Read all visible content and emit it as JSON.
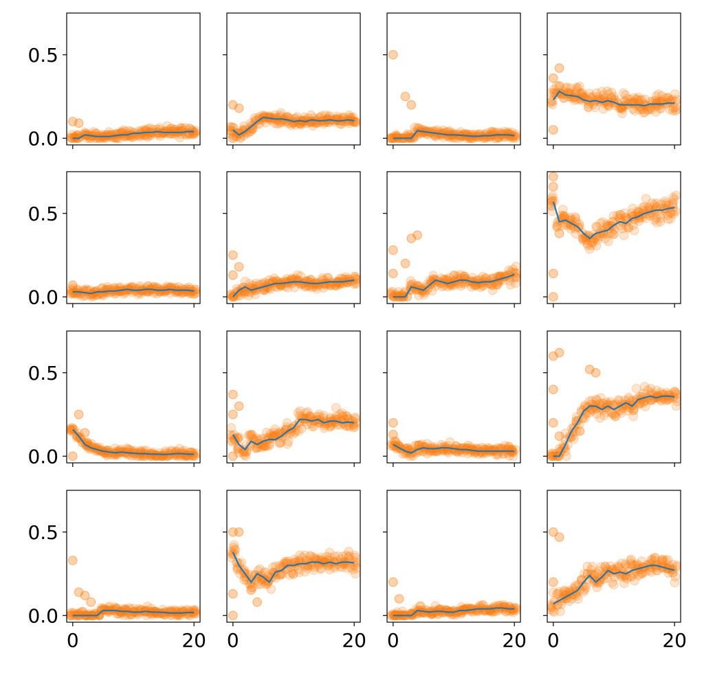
{
  "chart_data": {
    "type": "scatter",
    "layout": "4x4 small-multiples grid, shared x and y axes",
    "xlim": [
      -1,
      21
    ],
    "ylim": [
      -0.04,
      0.75
    ],
    "xticks": [
      0,
      20
    ],
    "xtick_labels": [
      "0",
      "20"
    ],
    "yticks": [
      0.0,
      0.5
    ],
    "ytick_labels": [
      "0.0",
      "0.5"
    ],
    "grid": false,
    "legend": "none",
    "colors": {
      "scatter": "#ff7f0e",
      "line": "#1f77b4"
    },
    "x": [
      0,
      1,
      2,
      3,
      4,
      5,
      6,
      7,
      8,
      9,
      10,
      11,
      12,
      13,
      14,
      15,
      16,
      17,
      18,
      19,
      20
    ],
    "panels": [
      {
        "row": 0,
        "col": 0,
        "mean": [
          0.0,
          0.0,
          0.02,
          0.015,
          0.01,
          0.01,
          0.01,
          0.015,
          0.02,
          0.02,
          0.03,
          0.03,
          0.035,
          0.035,
          0.04,
          0.035,
          0.035,
          0.035,
          0.035,
          0.04,
          0.04
        ],
        "spread": 0.035,
        "outliers": [
          [
            0,
            0.1
          ],
          [
            1,
            0.09
          ]
        ]
      },
      {
        "row": 0,
        "col": 1,
        "mean": [
          0.05,
          0.02,
          0.04,
          0.07,
          0.1,
          0.125,
          0.12,
          0.115,
          0.115,
          0.11,
          0.1,
          0.105,
          0.1,
          0.11,
          0.105,
          0.105,
          0.11,
          0.105,
          0.105,
          0.11,
          0.105
        ],
        "spread": 0.035,
        "outliers": [
          [
            0,
            0.2
          ],
          [
            0,
            0.0
          ],
          [
            1,
            0.18
          ]
        ]
      },
      {
        "row": 0,
        "col": 2,
        "mean": [
          0.0,
          0.0,
          0.0,
          0.0,
          0.045,
          0.04,
          0.035,
          0.03,
          0.025,
          0.02,
          0.02,
          0.018,
          0.015,
          0.012,
          0.012,
          0.015,
          0.015,
          0.02,
          0.02,
          0.02,
          0.015
        ],
        "spread": 0.03,
        "outliers": [
          [
            0,
            0.5
          ],
          [
            2,
            0.25
          ],
          [
            3,
            0.2
          ]
        ]
      },
      {
        "row": 0,
        "col": 3,
        "mean": [
          0.23,
          0.28,
          0.26,
          0.255,
          0.25,
          0.23,
          0.22,
          0.225,
          0.215,
          0.225,
          0.215,
          0.2,
          0.2,
          0.2,
          0.2,
          0.195,
          0.205,
          0.205,
          0.205,
          0.21,
          0.21
        ],
        "spread": 0.07,
        "outliers": [
          [
            0,
            0.36
          ],
          [
            1,
            0.42
          ],
          [
            0,
            0.05
          ]
        ]
      },
      {
        "row": 1,
        "col": 0,
        "mean": [
          0.03,
          0.03,
          0.025,
          0.02,
          0.03,
          0.03,
          0.035,
          0.035,
          0.04,
          0.045,
          0.04,
          0.04,
          0.045,
          0.045,
          0.04,
          0.04,
          0.045,
          0.04,
          0.04,
          0.04,
          0.035
        ],
        "spread": 0.03,
        "outliers": [
          [
            0,
            0.07
          ]
        ]
      },
      {
        "row": 1,
        "col": 1,
        "mean": [
          0.0,
          0.04,
          0.06,
          0.04,
          0.05,
          0.06,
          0.07,
          0.08,
          0.08,
          0.085,
          0.09,
          0.09,
          0.085,
          0.08,
          0.08,
          0.085,
          0.09,
          0.09,
          0.09,
          0.095,
          0.1
        ],
        "spread": 0.04,
        "outliers": [
          [
            0,
            0.25
          ],
          [
            0,
            0.13
          ],
          [
            1,
            0.18
          ]
        ]
      },
      {
        "row": 1,
        "col": 2,
        "mean": [
          0.0,
          0.0,
          0.0,
          0.06,
          0.05,
          0.04,
          0.07,
          0.1,
          0.09,
          0.08,
          0.09,
          0.1,
          0.1,
          0.09,
          0.085,
          0.09,
          0.09,
          0.1,
          0.11,
          0.12,
          0.135
        ],
        "spread": 0.05,
        "outliers": [
          [
            0,
            0.28
          ],
          [
            0,
            0.14
          ],
          [
            3,
            0.35
          ],
          [
            4,
            0.37
          ],
          [
            2,
            0.2
          ]
        ]
      },
      {
        "row": 1,
        "col": 3,
        "mean": [
          0.57,
          0.45,
          0.46,
          0.44,
          0.42,
          0.38,
          0.35,
          0.38,
          0.39,
          0.4,
          0.43,
          0.45,
          0.44,
          0.47,
          0.48,
          0.5,
          0.51,
          0.52,
          0.52,
          0.53,
          0.535
        ],
        "spread": 0.08,
        "outliers": [
          [
            0,
            0.72
          ],
          [
            0,
            0.66
          ],
          [
            0,
            0.14
          ],
          [
            0,
            0.0
          ],
          [
            1,
            0.38
          ]
        ]
      },
      {
        "row": 2,
        "col": 0,
        "mean": [
          0.16,
          0.12,
          0.07,
          0.05,
          0.04,
          0.03,
          0.025,
          0.02,
          0.025,
          0.02,
          0.018,
          0.015,
          0.015,
          0.012,
          0.012,
          0.01,
          0.012,
          0.015,
          0.015,
          0.012,
          0.012
        ],
        "spread": 0.03,
        "outliers": [
          [
            1,
            0.25
          ],
          [
            0,
            0.0
          ],
          [
            2,
            0.14
          ]
        ]
      },
      {
        "row": 2,
        "col": 1,
        "mean": [
          0.13,
          0.07,
          0.04,
          0.09,
          0.07,
          0.09,
          0.1,
          0.1,
          0.12,
          0.15,
          0.17,
          0.22,
          0.22,
          0.21,
          0.22,
          0.2,
          0.21,
          0.21,
          0.2,
          0.205,
          0.2
        ],
        "spread": 0.07,
        "outliers": [
          [
            0,
            0.37
          ],
          [
            0,
            0.25
          ],
          [
            0,
            0.0
          ],
          [
            1,
            0.3
          ]
        ]
      },
      {
        "row": 2,
        "col": 2,
        "mean": [
          0.07,
          0.05,
          0.03,
          0.02,
          0.04,
          0.05,
          0.045,
          0.045,
          0.05,
          0.05,
          0.045,
          0.04,
          0.04,
          0.035,
          0.03,
          0.03,
          0.03,
          0.03,
          0.03,
          0.03,
          0.03
        ],
        "spread": 0.035,
        "outliers": [
          [
            0,
            0.2
          ],
          [
            0,
            0.13
          ]
        ]
      },
      {
        "row": 2,
        "col": 3,
        "mean": [
          0.0,
          0.0,
          0.07,
          0.15,
          0.2,
          0.27,
          0.3,
          0.3,
          0.28,
          0.3,
          0.28,
          0.3,
          0.32,
          0.3,
          0.34,
          0.35,
          0.36,
          0.35,
          0.36,
          0.36,
          0.355
        ],
        "spread": 0.07,
        "outliers": [
          [
            0,
            0.6
          ],
          [
            1,
            0.62
          ],
          [
            0,
            0.4
          ],
          [
            0,
            0.2
          ],
          [
            1,
            0.12
          ],
          [
            6,
            0.52
          ],
          [
            7,
            0.5
          ]
        ]
      },
      {
        "row": 3,
        "col": 0,
        "mean": [
          0.0,
          0.0,
          0.0,
          0.0,
          0.0,
          0.03,
          0.03,
          0.03,
          0.025,
          0.025,
          0.02,
          0.02,
          0.025,
          0.02,
          0.02,
          0.018,
          0.015,
          0.015,
          0.015,
          0.018,
          0.018
        ],
        "spread": 0.03,
        "outliers": [
          [
            0,
            0.33
          ],
          [
            1,
            0.14
          ],
          [
            2,
            0.12
          ],
          [
            3,
            0.08
          ]
        ]
      },
      {
        "row": 3,
        "col": 1,
        "mean": [
          0.38,
          0.3,
          0.25,
          0.2,
          0.25,
          0.23,
          0.2,
          0.26,
          0.27,
          0.3,
          0.3,
          0.31,
          0.31,
          0.32,
          0.32,
          0.31,
          0.32,
          0.31,
          0.32,
          0.32,
          0.315
        ],
        "spread": 0.07,
        "outliers": [
          [
            0,
            0.5
          ],
          [
            1,
            0.5
          ],
          [
            0,
            0.0
          ],
          [
            0,
            0.13
          ],
          [
            4,
            0.08
          ]
        ]
      },
      {
        "row": 3,
        "col": 2,
        "mean": [
          0.0,
          0.0,
          0.0,
          0.0,
          0.03,
          0.025,
          0.02,
          0.025,
          0.025,
          0.02,
          0.02,
          0.03,
          0.03,
          0.035,
          0.04,
          0.04,
          0.04,
          0.045,
          0.045,
          0.04,
          0.04
        ],
        "spread": 0.03,
        "outliers": [
          [
            0,
            0.2
          ],
          [
            1,
            0.1
          ]
        ]
      },
      {
        "row": 3,
        "col": 3,
        "mean": [
          0.07,
          0.09,
          0.11,
          0.13,
          0.15,
          0.2,
          0.24,
          0.2,
          0.23,
          0.27,
          0.25,
          0.26,
          0.25,
          0.27,
          0.28,
          0.29,
          0.3,
          0.3,
          0.29,
          0.28,
          0.27
        ],
        "spread": 0.08,
        "outliers": [
          [
            0,
            0.5
          ],
          [
            1,
            0.47
          ],
          [
            0,
            0.2
          ],
          [
            2,
            0.12
          ]
        ]
      }
    ]
  }
}
